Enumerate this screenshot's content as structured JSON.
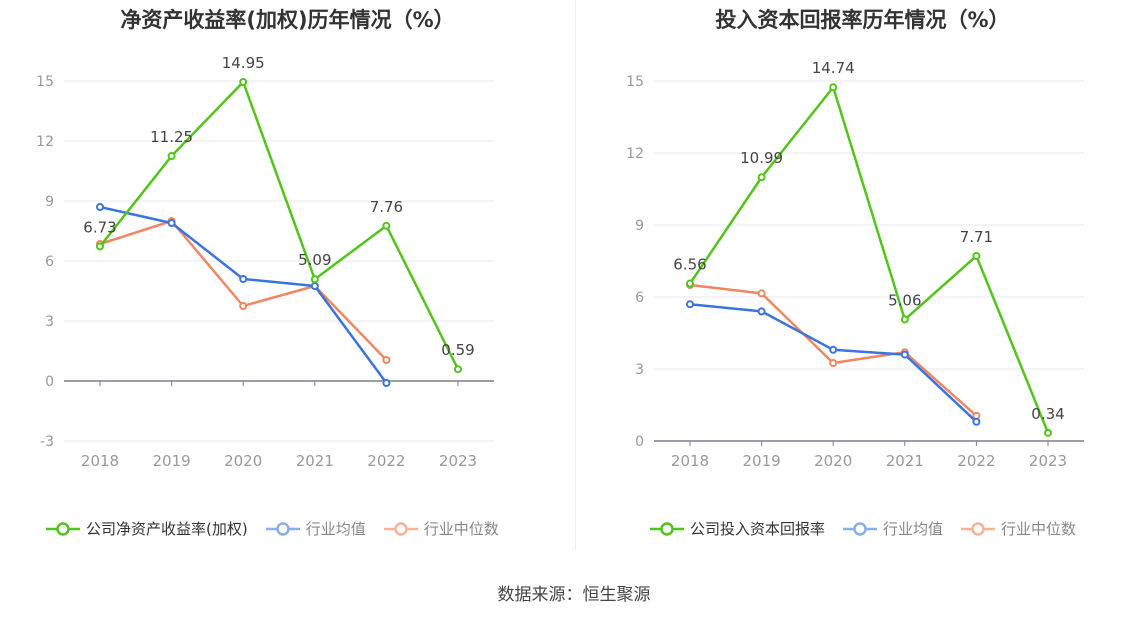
{
  "chart_data": [
    {
      "type": "line",
      "title": "净资产收益率(加权)历年情况（%）",
      "categories": [
        "2018",
        "2019",
        "2020",
        "2021",
        "2022",
        "2023"
      ],
      "ylim": [
        -3,
        15
      ],
      "yticks": [
        -3,
        0,
        3,
        6,
        9,
        12,
        15
      ],
      "series": [
        {
          "name": "公司净资产收益率(加权)",
          "color": "#52c41a",
          "values": [
            6.73,
            11.25,
            14.95,
            5.09,
            7.76,
            0.59
          ],
          "labels": [
            "6.73",
            "11.25",
            "14.95",
            "5.09",
            "7.76",
            "0.59"
          ]
        },
        {
          "name": "行业均值",
          "color": "#3b74de",
          "values": [
            8.7,
            7.9,
            5.1,
            4.75,
            -0.1,
            null
          ]
        },
        {
          "name": "行业中位数",
          "color": "#f08760",
          "values": [
            6.85,
            8.0,
            3.75,
            4.75,
            1.05,
            null
          ]
        }
      ]
    },
    {
      "type": "line",
      "title": "投入资本回报率历年情况（%）",
      "categories": [
        "2018",
        "2019",
        "2020",
        "2021",
        "2022",
        "2023"
      ],
      "ylim": [
        0,
        15
      ],
      "yticks": [
        0,
        3,
        6,
        9,
        12,
        15
      ],
      "series": [
        {
          "name": "公司投入资本回报率",
          "color": "#52c41a",
          "values": [
            6.56,
            10.99,
            14.74,
            5.06,
            7.71,
            0.34
          ],
          "labels": [
            "6.56",
            "10.99",
            "14.74",
            "5.06",
            "7.71",
            "0.34"
          ]
        },
        {
          "name": "行业均值",
          "color": "#3b74de",
          "values": [
            5.7,
            5.4,
            3.8,
            3.6,
            0.8,
            null
          ]
        },
        {
          "name": "行业中位数",
          "color": "#f08760",
          "values": [
            6.5,
            6.15,
            3.25,
            3.7,
            1.05,
            null
          ]
        }
      ]
    }
  ],
  "source": "数据来源：恒生聚源"
}
